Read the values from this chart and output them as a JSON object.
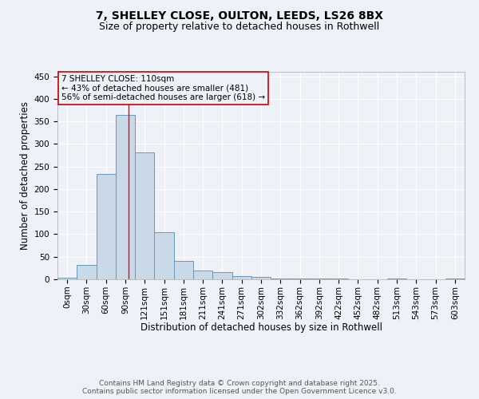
{
  "title_line1": "7, SHELLEY CLOSE, OULTON, LEEDS, LS26 8BX",
  "title_line2": "Size of property relative to detached houses in Rothwell",
  "xlabel": "Distribution of detached houses by size in Rothwell",
  "ylabel": "Number of detached properties",
  "categories": [
    "0sqm",
    "30sqm",
    "60sqm",
    "90sqm",
    "121sqm",
    "151sqm",
    "181sqm",
    "211sqm",
    "241sqm",
    "271sqm",
    "302sqm",
    "332sqm",
    "362sqm",
    "392sqm",
    "422sqm",
    "452sqm",
    "482sqm",
    "513sqm",
    "543sqm",
    "573sqm",
    "603sqm"
  ],
  "values": [
    3,
    31,
    234,
    365,
    282,
    105,
    40,
    20,
    16,
    7,
    5,
    2,
    1,
    1,
    1,
    0,
    0,
    1,
    0,
    0,
    2
  ],
  "bar_color": "#c9d9e8",
  "bar_edge_color": "#6699bb",
  "ylim": [
    0,
    460
  ],
  "yticks": [
    0,
    50,
    100,
    150,
    200,
    250,
    300,
    350,
    400,
    450
  ],
  "annotation_box_text": "7 SHELLEY CLOSE: 110sqm\n← 43% of detached houses are smaller (481)\n56% of semi-detached houses are larger (618) →",
  "redline_x": 3.67,
  "annotation_box_color": "#cc0000",
  "footer_line1": "Contains HM Land Registry data © Crown copyright and database right 2025.",
  "footer_line2": "Contains public sector information licensed under the Open Government Licence v3.0.",
  "background_color": "#eef2f8",
  "grid_color": "#ffffff",
  "title_fontsize": 10,
  "subtitle_fontsize": 9,
  "axis_label_fontsize": 8.5,
  "tick_fontsize": 7.5,
  "footer_fontsize": 6.5,
  "annotation_fontsize": 7.5
}
